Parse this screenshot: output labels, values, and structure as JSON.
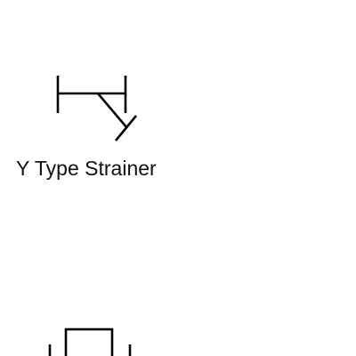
{
  "shapes": [
    {
      "label": "Y Type Strainer",
      "icon": "y-type-strainer-icon"
    },
    {
      "label": "",
      "icon": "valve-actuator-icon",
      "partially_visible": true
    }
  ],
  "colors": {
    "background": "#ffffff",
    "stroke": "#000000",
    "text": "#111111"
  }
}
